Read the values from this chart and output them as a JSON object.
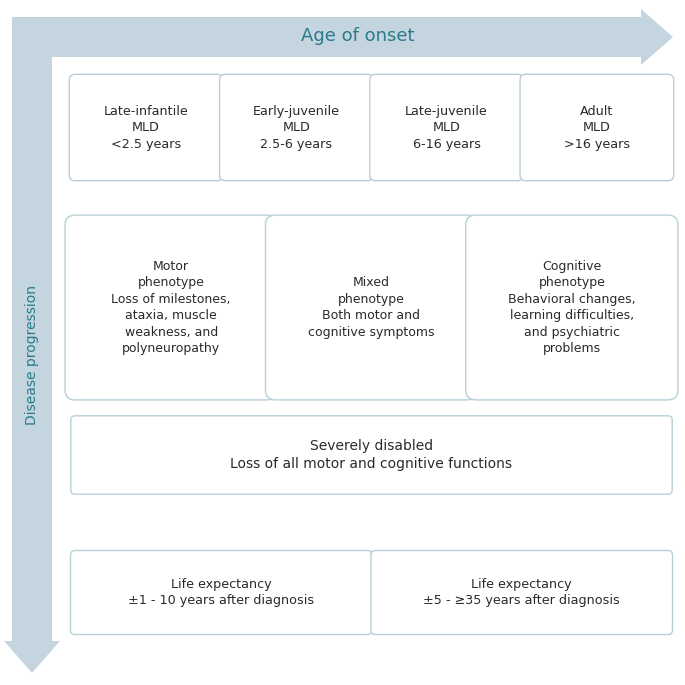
{
  "bg_color": "#ffffff",
  "arrow_color": "#c5d5e0",
  "text_color_dark": "#2a7a8a",
  "text_color_black": "#2a2a2a",
  "box_edge_color": "#b8cfd8",
  "box_face_color": "#ffffff",
  "title": "Age of onset",
  "left_label": "Disease progression",
  "top_boxes": [
    "Late-infantile\nMLD\n<2.5 years",
    "Early-juvenile\nMLD\n2.5-6 years",
    "Late-juvenile\nMLD\n6-16 years",
    "Adult\nMLD\n>16 years"
  ],
  "mid_boxes": [
    "Motor\nphenotype\nLoss of milestones,\nataxia, muscle\nweakness, and\npolyneuropathy",
    "Mixed\nphenotype\nBoth motor and\ncognitive symptoms",
    "Cognitive\nphenotype\nBehavioral changes,\nlearning difficulties,\nand psychiatric\nproblems"
  ],
  "wide_box": "Severely disabled\nLoss of all motor and cognitive functions",
  "bottom_boxes": [
    "Life expectancy\n±1 - 10 years after diagnosis",
    "Life expectancy\n±5 - ≥35 years after diagnosis"
  ],
  "figsize": [
    6.85,
    6.85
  ],
  "dpi": 100
}
